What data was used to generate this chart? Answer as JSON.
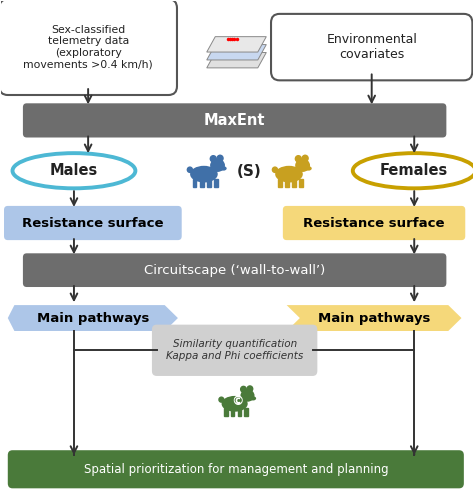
{
  "bg_color": "#ffffff",
  "gray_box_color": "#6d6d6d",
  "gray_box_text_color": "#ffffff",
  "blue_box_color": "#adc6e8",
  "blue_box_text_color": "#000000",
  "yellow_box_color": "#f5d87a",
  "yellow_box_text_color": "#000000",
  "green_box_color": "#4a7a3a",
  "green_box_text_color": "#ffffff",
  "light_gray_box_color": "#d0d0d0",
  "white_box_color": "#ffffff",
  "white_box_border_color": "#555555",
  "blue_ellipse_edge": "#4db8d4",
  "yellow_ellipse_edge": "#c8a000",
  "bear_blue_color": "#4070a8",
  "bear_yellow_color": "#c8a020",
  "bear_green_color": "#4a7a3a",
  "arrow_color": "#333333",
  "text_dark": "#222222",
  "maxent_text": "MaxEnt",
  "circuitscape_text": "Circuitscape (‘wall-to-wall’)",
  "males_text": "Males",
  "females_text": "Females",
  "resistance_text": "Resistance surface",
  "main_pathways_text": "Main pathways",
  "similarity_line1": "Similarity quantification",
  "similarity_line2": "Kappa and Phi coefficients",
  "green_bar_text": "Spatial prioritization for management and planning",
  "left_box_line1": "Sex-classified",
  "left_box_line2": "telemetry data",
  "left_box_line3": "(exploratory",
  "left_box_line4": "movements >0.4 km/h)",
  "right_box_line1": "Environmental",
  "right_box_line2": "covariates"
}
